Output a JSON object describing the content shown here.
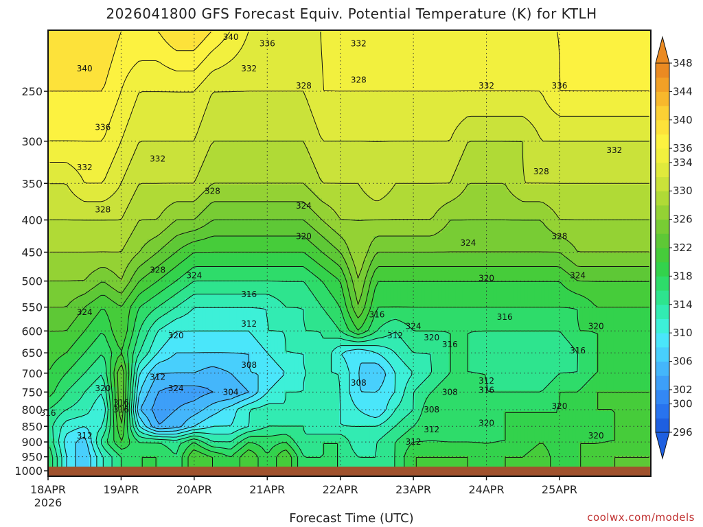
{
  "chart_data": {
    "type": "heatmap",
    "title": "2026041800 GFS Forecast Equiv. Potential Temperature (K) for KTLH",
    "xlabel": "Forecast Time (UTC)",
    "ylabel": "",
    "credit": "coolwx.com/models",
    "x_ticks": [
      "18APR",
      "19APR",
      "20APR",
      "21APR",
      "22APR",
      "23APR",
      "24APR",
      "25APR"
    ],
    "x_tick_year": "2026",
    "y_ticks": [
      250,
      300,
      350,
      400,
      450,
      500,
      550,
      600,
      650,
      700,
      750,
      800,
      850,
      900,
      950,
      1000
    ],
    "y_axis": {
      "scale": "log",
      "range": [
        200,
        1020
      ],
      "reversed": true
    },
    "grid": true,
    "colorbar": {
      "levels": [
        296,
        298,
        300,
        302,
        304,
        306,
        308,
        310,
        312,
        314,
        316,
        318,
        320,
        322,
        324,
        326,
        328,
        330,
        332,
        334,
        336,
        338,
        340,
        342,
        344,
        346,
        348
      ],
      "labels": [
        "296",
        "300",
        "302",
        "306",
        "310",
        "314",
        "318",
        "322",
        "326",
        "330",
        "334",
        "336",
        "340",
        "344",
        "348"
      ],
      "colors": [
        "#1e5fe0",
        "#2873ee",
        "#3388f5",
        "#3d9ff8",
        "#44b6fb",
        "#48cffc",
        "#4ae6fa",
        "#3df0d8",
        "#32ebb2",
        "#2ee48e",
        "#2edc6a",
        "#33d24c",
        "#46cc3a",
        "#5ec836",
        "#78cc34",
        "#94d234",
        "#b0da36",
        "#cae23a",
        "#e0ea3c",
        "#f2f03e",
        "#fcf240",
        "#fde23a",
        "#fcd034",
        "#f8b82c",
        "#f2a026",
        "#ea8a22"
      ]
    },
    "series": [
      {
        "name": "1000",
        "values": [
          318,
          310,
          306,
          312,
          316,
          318,
          318,
          316,
          322,
          320,
          318,
          322,
          318,
          322,
          316,
          316,
          316,
          314,
          314,
          316,
          320,
          320,
          320,
          320,
          318,
          320,
          320,
          322,
          318,
          320,
          320,
          322
        ]
      },
      {
        "name": "950",
        "values": [
          318,
          310,
          306,
          312,
          316,
          318,
          318,
          316,
          322,
          320,
          318,
          322,
          318,
          322,
          316,
          316,
          316,
          314,
          314,
          316,
          320,
          320,
          320,
          320,
          318,
          320,
          320,
          322,
          318,
          320,
          320,
          322
        ]
      },
      {
        "name": "900",
        "values": [
          316,
          309,
          307,
          315,
          320,
          316,
          316,
          315,
          318,
          314,
          314,
          318,
          317,
          318,
          314,
          316,
          316,
          312,
          314,
          316,
          318,
          318,
          318,
          318,
          318,
          318,
          318,
          320,
          318,
          320,
          320,
          320
        ]
      },
      {
        "name": "850",
        "values": [
          315,
          311,
          310,
          312,
          322,
          310,
          304,
          305,
          308,
          310,
          310,
          312,
          314,
          314,
          314,
          312,
          312,
          312,
          312,
          314,
          316,
          318,
          316,
          316,
          316,
          318,
          318,
          318,
          318,
          318,
          318,
          320
        ]
      },
      {
        "name": "800",
        "values": [
          316,
          314,
          313,
          310,
          324,
          306,
          303,
          304,
          305,
          307,
          309,
          312,
          313,
          312,
          314,
          314,
          312,
          310,
          308,
          312,
          314,
          318,
          316,
          318,
          318,
          318,
          318,
          318,
          318,
          320,
          320,
          320
        ]
      },
      {
        "name": "750",
        "values": [
          319,
          316,
          314,
          312,
          324,
          308,
          304,
          303,
          303,
          304,
          304,
          306,
          310,
          312,
          312,
          314,
          312,
          308,
          308,
          310,
          314,
          316,
          318,
          318,
          316,
          316,
          316,
          316,
          318,
          318,
          320,
          320
        ]
      },
      {
        "name": "700",
        "values": [
          320,
          318,
          316,
          314,
          324,
          310,
          306,
          306,
          306,
          305,
          306,
          308,
          308,
          310,
          312,
          312,
          312,
          308,
          306,
          310,
          312,
          314,
          316,
          316,
          316,
          314,
          314,
          314,
          316,
          316,
          318,
          318
        ]
      },
      {
        "name": "650",
        "values": [
          321,
          320,
          318,
          316,
          320,
          314,
          310,
          308,
          308,
          308,
          308,
          308,
          310,
          312,
          312,
          314,
          310,
          308,
          310,
          312,
          314,
          314,
          316,
          316,
          314,
          314,
          314,
          314,
          314,
          316,
          318,
          318
        ]
      },
      {
        "name": "600",
        "values": [
          322,
          322,
          320,
          318,
          322,
          316,
          312,
          310,
          310,
          310,
          310,
          310,
          312,
          312,
          314,
          314,
          316,
          320,
          316,
          314,
          316,
          316,
          316,
          316,
          316,
          316,
          316,
          316,
          316,
          318,
          318,
          318
        ]
      },
      {
        "name": "550",
        "values": [
          324,
          324,
          322,
          320,
          322,
          318,
          316,
          314,
          312,
          312,
          312,
          312,
          312,
          314,
          314,
          316,
          318,
          324,
          318,
          318,
          318,
          318,
          318,
          318,
          318,
          318,
          318,
          318,
          318,
          318,
          320,
          320
        ]
      },
      {
        "name": "500",
        "values": [
          326,
          326,
          326,
          324,
          326,
          322,
          320,
          318,
          316,
          316,
          316,
          316,
          316,
          316,
          316,
          318,
          320,
          326,
          320,
          320,
          320,
          320,
          320,
          320,
          320,
          320,
          320,
          320,
          320,
          322,
          322,
          322
        ]
      },
      {
        "name": "450",
        "values": [
          328,
          328,
          328,
          328,
          328,
          326,
          324,
          322,
          320,
          320,
          320,
          320,
          320,
          320,
          320,
          322,
          324,
          328,
          324,
          324,
          324,
          324,
          324,
          324,
          324,
          324,
          324,
          324,
          324,
          326,
          326,
          326
        ]
      },
      {
        "name": "400",
        "values": [
          330,
          330,
          330,
          330,
          330,
          328,
          328,
          326,
          326,
          324,
          324,
          324,
          324,
          324,
          324,
          326,
          328,
          328,
          328,
          328,
          328,
          328,
          326,
          326,
          326,
          326,
          326,
          326,
          328,
          328,
          328,
          328
        ]
      },
      {
        "name": "350",
        "values": [
          332,
          332,
          334,
          334,
          332,
          330,
          330,
          330,
          330,
          328,
          328,
          328,
          328,
          328,
          328,
          330,
          330,
          330,
          332,
          330,
          330,
          330,
          330,
          328,
          328,
          328,
          330,
          330,
          330,
          330,
          330,
          330
        ]
      },
      {
        "name": "300",
        "values": [
          336,
          336,
          336,
          336,
          334,
          332,
          332,
          332,
          332,
          330,
          330,
          330,
          330,
          330,
          330,
          332,
          332,
          332,
          332,
          332,
          332,
          332,
          332,
          330,
          330,
          330,
          330,
          332,
          332,
          332,
          332,
          332
        ]
      },
      {
        "name": "250",
        "values": [
          338,
          338,
          338,
          338,
          336,
          334,
          334,
          334,
          334,
          332,
          332,
          332,
          332,
          332,
          332,
          334,
          334,
          334,
          334,
          334,
          334,
          334,
          334,
          334,
          334,
          334,
          334,
          334,
          336,
          336,
          336,
          336
        ]
      },
      {
        "name": "200",
        "values": [
          340,
          340,
          340,
          340,
          338,
          338,
          338,
          340,
          340,
          338,
          336,
          334,
          334,
          334,
          334,
          334,
          336,
          336,
          336,
          336,
          336,
          336,
          336,
          336,
          336,
          336,
          336,
          336,
          336,
          338,
          338,
          338
        ]
      }
    ],
    "x": [
      "18APR 00Z",
      "18APR 06Z",
      "18APR 12Z",
      "18APR 18Z",
      "19APR 00Z",
      "19APR 06Z",
      "19APR 12Z",
      "19APR 18Z",
      "20APR 00Z",
      "20APR 06Z",
      "20APR 12Z",
      "20APR 18Z",
      "21APR 00Z",
      "21APR 06Z",
      "21APR 12Z",
      "21APR 18Z",
      "22APR 00Z",
      "22APR 06Z",
      "22APR 12Z",
      "22APR 18Z",
      "23APR 00Z",
      "23APR 06Z",
      "23APR 12Z",
      "23APR 18Z",
      "24APR 00Z",
      "24APR 06Z",
      "24APR 12Z",
      "24APR 18Z",
      "25APR 00Z",
      "25APR 06Z",
      "25APR 12Z",
      "25APR 18Z"
    ],
    "contour_labels": [
      {
        "text": "340",
        "time": "18APR 12Z",
        "p": 230
      },
      {
        "text": "336",
        "time": "18APR 18Z",
        "p": 285
      },
      {
        "text": "332",
        "time": "18APR 12Z",
        "p": 330
      },
      {
        "text": "328",
        "time": "18APR 18Z",
        "p": 385
      },
      {
        "text": "324",
        "time": "18APR 12Z",
        "p": 560
      },
      {
        "text": "320",
        "time": "18APR 18Z",
        "p": 740
      },
      {
        "text": "316",
        "time": "18APR 00Z",
        "p": 810
      },
      {
        "text": "312",
        "time": "18APR 12Z",
        "p": 880
      },
      {
        "text": "316",
        "time": "19APR 00Z",
        "p": 780
      },
      {
        "text": "316",
        "time": "19APR 00Z",
        "p": 800
      },
      {
        "text": "312",
        "time": "19APR 12Z",
        "p": 710
      },
      {
        "text": "324",
        "time": "19APR 18Z",
        "p": 740
      },
      {
        "text": "320",
        "time": "19APR 18Z",
        "p": 610
      },
      {
        "text": "328",
        "time": "19APR 12Z",
        "p": 480
      },
      {
        "text": "324",
        "time": "20APR 00Z",
        "p": 490
      },
      {
        "text": "332",
        "time": "19APR 12Z",
        "p": 320
      },
      {
        "text": "328",
        "time": "20APR 06Z",
        "p": 360
      },
      {
        "text": "332",
        "time": "20APR 18Z",
        "p": 230
      },
      {
        "text": "340",
        "time": "20APR 12Z",
        "p": 205
      },
      {
        "text": "336",
        "time": "21APR 00Z",
        "p": 210
      },
      {
        "text": "328",
        "time": "21APR 12Z",
        "p": 245
      },
      {
        "text": "332",
        "time": "22APR 06Z",
        "p": 210
      },
      {
        "text": "328",
        "time": "22APR 06Z",
        "p": 240
      },
      {
        "text": "324",
        "time": "21APR 12Z",
        "p": 380
      },
      {
        "text": "320",
        "time": "21APR 12Z",
        "p": 425
      },
      {
        "text": "316",
        "time": "20APR 18Z",
        "p": 525
      },
      {
        "text": "312",
        "time": "20APR 18Z",
        "p": 585
      },
      {
        "text": "308",
        "time": "20APR 18Z",
        "p": 680
      },
      {
        "text": "304",
        "time": "20APR 12Z",
        "p": 750
      },
      {
        "text": "308",
        "time": "22APR 06Z",
        "p": 725
      },
      {
        "text": "316",
        "time": "22APR 12Z",
        "p": 565
      },
      {
        "text": "312",
        "time": "22APR 18Z",
        "p": 610
      },
      {
        "text": "324",
        "time": "23APR 00Z",
        "p": 590
      },
      {
        "text": "320",
        "time": "23APR 06Z",
        "p": 615
      },
      {
        "text": "312",
        "time": "23APR 00Z",
        "p": 900
      },
      {
        "text": "308",
        "time": "23APR 12Z",
        "p": 750
      },
      {
        "text": "308",
        "time": "23APR 06Z",
        "p": 800
      },
      {
        "text": "312",
        "time": "23APR 06Z",
        "p": 860
      },
      {
        "text": "316",
        "time": "23APR 12Z",
        "p": 630
      },
      {
        "text": "312",
        "time": "24APR 00Z",
        "p": 720
      },
      {
        "text": "316",
        "time": "24APR 00Z",
        "p": 745
      },
      {
        "text": "320",
        "time": "24APR 00Z",
        "p": 840
      },
      {
        "text": "316",
        "time": "24APR 06Z",
        "p": 570
      },
      {
        "text": "320",
        "time": "24APR 00Z",
        "p": 495
      },
      {
        "text": "324",
        "time": "23APR 18Z",
        "p": 435
      },
      {
        "text": "328",
        "time": "24APR 18Z",
        "p": 335
      },
      {
        "text": "328",
        "time": "25APR 00Z",
        "p": 425
      },
      {
        "text": "324",
        "time": "25APR 06Z",
        "p": 490
      },
      {
        "text": "320",
        "time": "25APR 12Z",
        "p": 590
      },
      {
        "text": "316",
        "time": "25APR 06Z",
        "p": 645
      },
      {
        "text": "320",
        "time": "25APR 00Z",
        "p": 790
      },
      {
        "text": "320",
        "time": "25APR 12Z",
        "p": 880
      },
      {
        "text": "332",
        "time": "24APR 00Z",
        "p": 245
      },
      {
        "text": "336",
        "time": "25APR 00Z",
        "p": 245
      },
      {
        "text": "332",
        "time": "25APR 18Z",
        "p": 310
      }
    ]
  }
}
